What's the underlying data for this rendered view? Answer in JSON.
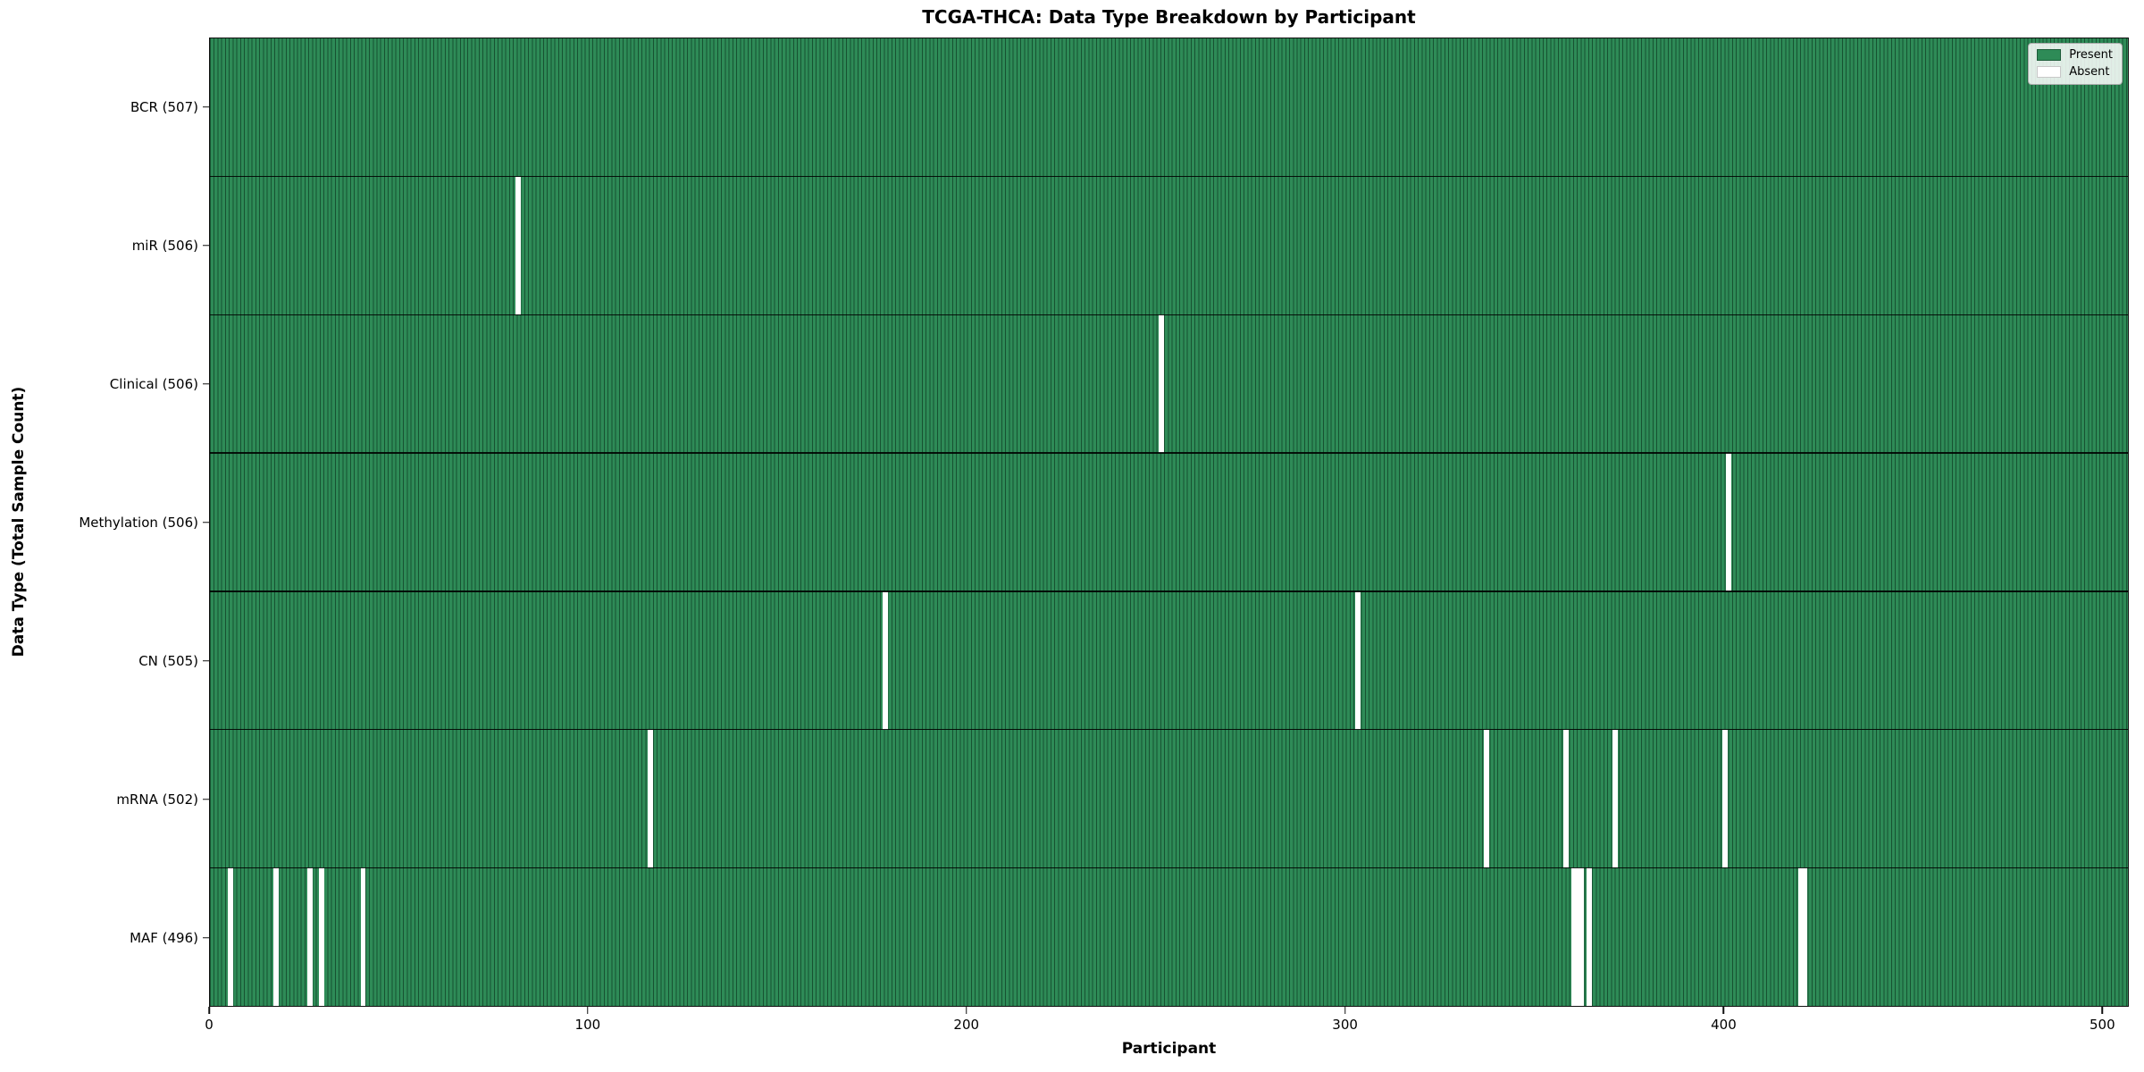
{
  "title": "TCGA-THCA: Data Type Breakdown by Participant",
  "xlabel": "Participant",
  "ylabel": "Data Type (Total Sample Count)",
  "legend": {
    "present_label": "Present",
    "absent_label": "Absent"
  },
  "colors": {
    "present": "#2e8b57",
    "absent": "#ffffff",
    "bar_edge": "rgba(0,25,12,0.5)",
    "legend_present_border": "#1d5c39",
    "legend_absent_border": "#c8c8c8"
  },
  "chart_data": {
    "type": "heatmap",
    "title": "TCGA-THCA: Data Type Breakdown by Participant",
    "xlabel": "Participant",
    "ylabel": "Data Type (Total Sample Count)",
    "total_participants": 507,
    "xlim": [
      0,
      507
    ],
    "x_ticks": [
      0,
      100,
      200,
      300,
      400,
      500
    ],
    "grid": false,
    "legend_position": "upper right",
    "legend": [
      {
        "label": "Present",
        "color": "#2e8b57"
      },
      {
        "label": "Absent",
        "color": "#ffffff"
      }
    ],
    "rows": [
      {
        "label": "BCR (507)",
        "data_type": "BCR",
        "present_count": 507,
        "absent_participants": []
      },
      {
        "label": "miR (506)",
        "data_type": "miR",
        "present_count": 506,
        "absent_participants": [
          81
        ]
      },
      {
        "label": "Clinical (506)",
        "data_type": "Clinical",
        "present_count": 506,
        "absent_participants": [
          251
        ]
      },
      {
        "label": "Methylation (506)",
        "data_type": "Methylation",
        "present_count": 506,
        "absent_participants": [
          401
        ]
      },
      {
        "label": "CN (505)",
        "data_type": "CN",
        "present_count": 505,
        "absent_participants": [
          178,
          303
        ]
      },
      {
        "label": "mRNA (502)",
        "data_type": "mRNA",
        "present_count": 502,
        "absent_participants": [
          116,
          337,
          358,
          371,
          400
        ]
      },
      {
        "label": "MAF (496)",
        "data_type": "MAF",
        "present_count": 496,
        "absent_participants": [
          5,
          17,
          26,
          29,
          40,
          360,
          361,
          362,
          364,
          420,
          421
        ]
      }
    ]
  }
}
